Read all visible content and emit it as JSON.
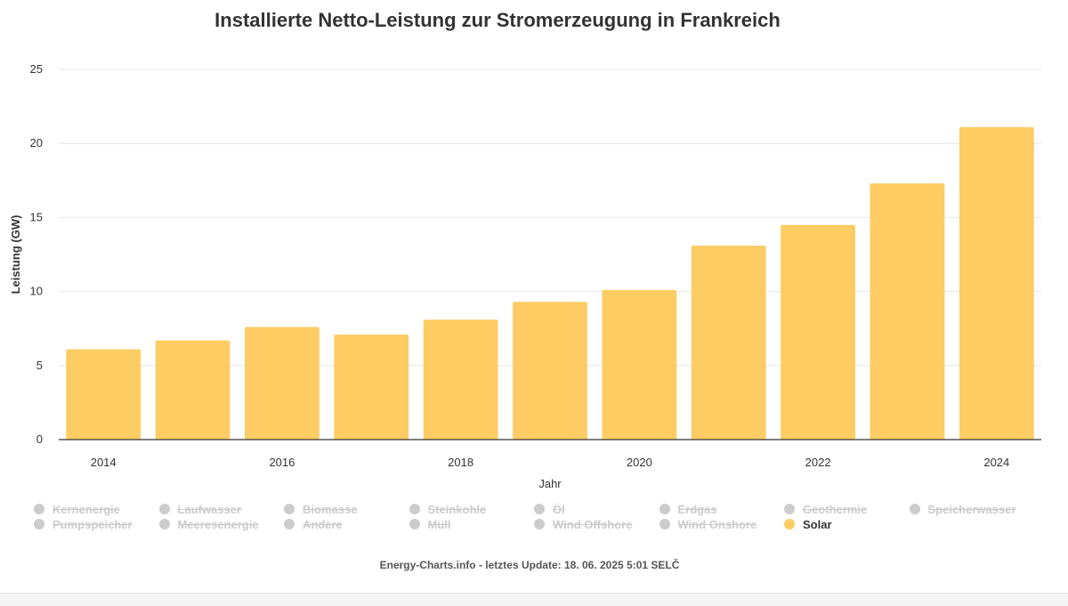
{
  "chart_data": {
    "type": "bar",
    "title": "Installierte Netto-Leistung zur Stromerzeugung in Frankreich",
    "xlabel": "Jahr",
    "ylabel": "Leistung (GW)",
    "ylim": [
      0,
      25
    ],
    "yticks": [
      "0",
      "5",
      "10",
      "15",
      "20",
      "25"
    ],
    "xticks": [
      "2014",
      "2016",
      "2018",
      "2020",
      "2022",
      "2024"
    ],
    "grid": true,
    "categories": [
      "2014",
      "2015",
      "2016",
      "2017",
      "2018",
      "2019",
      "2020",
      "2021",
      "2022",
      "2023",
      "2024"
    ],
    "series": [
      {
        "name": "Solar",
        "color": "#fdcc63",
        "values": [
          6.1,
          6.7,
          7.6,
          7.1,
          8.1,
          9.3,
          10.1,
          13.1,
          14.5,
          17.3,
          21.1
        ]
      }
    ],
    "legend": {
      "placement": "bottom",
      "items": [
        {
          "label": "Kernenergie",
          "visible": false
        },
        {
          "label": "Laufwasser",
          "visible": false
        },
        {
          "label": "Biomasse",
          "visible": false
        },
        {
          "label": "Steinkohle",
          "visible": false
        },
        {
          "label": "Öl",
          "visible": false
        },
        {
          "label": "Erdgas",
          "visible": false
        },
        {
          "label": "Geothermie",
          "visible": false
        },
        {
          "label": "Speicherwasser",
          "visible": false
        },
        {
          "label": "Pumpspeicher",
          "visible": false
        },
        {
          "label": "Meeresenergie",
          "visible": false
        },
        {
          "label": "Andere",
          "visible": false
        },
        {
          "label": "Müll",
          "visible": false
        },
        {
          "label": "Wind Offshore",
          "visible": false
        },
        {
          "label": "Wind Onshore",
          "visible": false
        },
        {
          "label": "Solar",
          "visible": true,
          "color": "#fdcc63"
        }
      ]
    }
  },
  "credits": "Energy-Charts.info - letztes Update: 18. 06. 2025 5:01 SELČ",
  "colors": {
    "bar": "#fdcc63",
    "grid": "#e6e6e6",
    "axis": "#333333",
    "hidden_legend": "#cccccc"
  }
}
